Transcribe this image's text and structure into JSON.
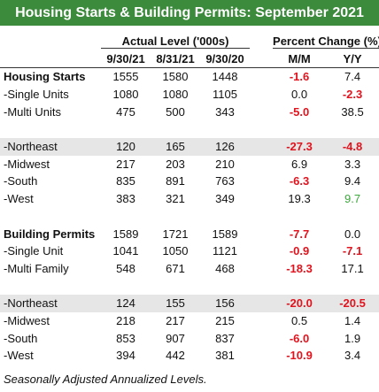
{
  "title": "Housing Starts & Building Permits: September 2021",
  "header": {
    "group_actual": "Actual Level ('000s)",
    "group_change": "Percent Change (%)",
    "columns": [
      "9/30/21",
      "8/31/21",
      "9/30/20",
      "M/M",
      "Y/Y"
    ]
  },
  "sections": [
    {
      "rows": [
        [
          "Housing Starts",
          "1555",
          "1580",
          "1448",
          "-1.6",
          "7.4"
        ],
        [
          "-Single Units",
          "1080",
          "1080",
          "1105",
          "0.0",
          "-2.3"
        ],
        [
          "-Multi Units",
          "475",
          "500",
          "343",
          "-5.0",
          "38.5"
        ]
      ]
    },
    {
      "rows": [
        [
          "-Northeast",
          "120",
          "165",
          "126",
          "-27.3",
          "-4.8"
        ],
        [
          "-Midwest",
          "217",
          "203",
          "210",
          "6.9",
          "3.3"
        ],
        [
          "-South",
          "835",
          "891",
          "763",
          "-6.3",
          "9.4"
        ],
        [
          "-West",
          "383",
          "321",
          "349",
          "19.3",
          "9.7"
        ]
      ]
    },
    {
      "rows": [
        [
          "Building Permits",
          "1589",
          "1721",
          "1589",
          "-7.7",
          "0.0"
        ],
        [
          "-Single Unit",
          "1041",
          "1050",
          "1121",
          "-0.9",
          "-7.1"
        ],
        [
          "-Multi Family",
          "548",
          "671",
          "468",
          "-18.3",
          "17.1"
        ]
      ]
    },
    {
      "rows": [
        [
          "-Northeast",
          "124",
          "155",
          "156",
          "-20.0",
          "-20.5"
        ],
        [
          "-Midwest",
          "218",
          "217",
          "215",
          "0.5",
          "1.4"
        ],
        [
          "-South",
          "853",
          "907",
          "837",
          "-6.0",
          "1.9"
        ],
        [
          "-West",
          "394",
          "442",
          "381",
          "-10.9",
          "3.4"
        ]
      ]
    }
  ],
  "footnote": "Seasonally Adjusted Annualized Levels."
}
